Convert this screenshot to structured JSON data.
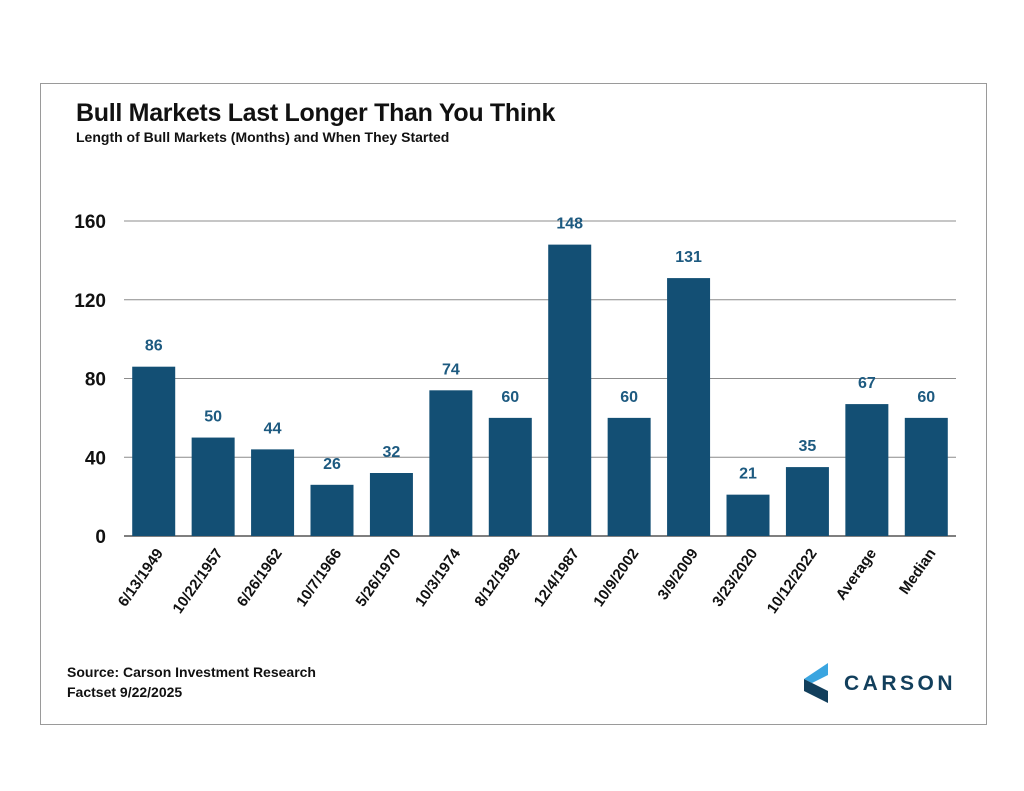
{
  "chart_data": {
    "type": "bar",
    "title": "Bull Markets Last Longer Than You Think",
    "subtitle": "Length of Bull Markets (Months) and When They Started",
    "categories": [
      "6/13/1949",
      "10/22/1957",
      "6/26/1962",
      "10/7/1966",
      "5/26/1970",
      "10/3/1974",
      "8/12/1982",
      "12/4/1987",
      "10/9/2002",
      "3/9/2009",
      "3/23/2020",
      "10/12/2022",
      "Average",
      "Median"
    ],
    "values": [
      86,
      50,
      44,
      26,
      32,
      74,
      60,
      148,
      60,
      131,
      21,
      35,
      67,
      60
    ],
    "ylim": [
      0,
      160
    ],
    "yticks": [
      0,
      40,
      80,
      120,
      160
    ],
    "xlabel": "",
    "ylabel": "",
    "bar_color": "#134f74",
    "label_color": "#1d5a80",
    "grid": true
  },
  "footer": {
    "source": "Source: Carson Investment Research",
    "note": "Factset 9/22/2025"
  },
  "logo": {
    "text": "CARSON",
    "color": "#123f5c",
    "accent": "#3aa5e0"
  }
}
